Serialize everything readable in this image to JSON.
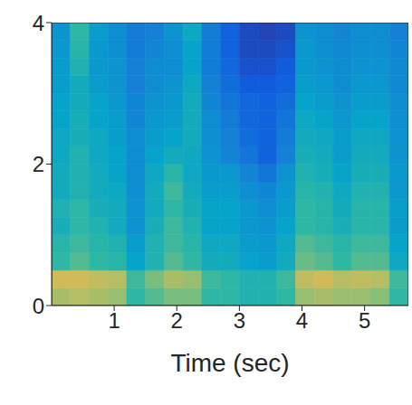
{
  "chart_data": {
    "type": "heatmap",
    "x_label": "Time (sec)",
    "xlim": [
      0,
      5.7
    ],
    "ylim": [
      0,
      4
    ],
    "xticks": [
      1,
      2,
      3,
      4,
      5
    ],
    "yticks": [
      0,
      2,
      4
    ],
    "color_range": [
      0,
      1
    ],
    "x_edges": [
      0,
      0.3,
      0.6,
      0.9,
      1.2,
      1.5,
      1.8,
      2.1,
      2.4,
      2.7,
      3.0,
      3.3,
      3.6,
      3.9,
      4.2,
      4.5,
      4.8,
      5.1,
      5.4,
      5.7
    ],
    "y_edges": [
      0,
      0.25,
      0.5,
      0.75,
      1.0,
      1.25,
      1.5,
      1.75,
      2.0,
      2.25,
      2.5,
      2.75,
      3.0,
      3.25,
      3.5,
      3.75,
      4.0
    ],
    "z": [
      [
        0.78,
        0.8,
        0.78,
        0.75,
        0.6,
        0.65,
        0.7,
        0.7,
        0.6,
        0.6,
        0.55,
        0.55,
        0.6,
        0.75,
        0.78,
        0.75,
        0.75,
        0.72,
        0.6
      ],
      [
        0.85,
        0.85,
        0.82,
        0.8,
        0.62,
        0.7,
        0.78,
        0.75,
        0.62,
        0.6,
        0.55,
        0.55,
        0.62,
        0.82,
        0.85,
        0.8,
        0.82,
        0.8,
        0.62
      ],
      [
        0.6,
        0.65,
        0.6,
        0.58,
        0.45,
        0.55,
        0.65,
        0.6,
        0.5,
        0.5,
        0.45,
        0.42,
        0.5,
        0.68,
        0.65,
        0.6,
        0.65,
        0.65,
        0.48
      ],
      [
        0.58,
        0.62,
        0.58,
        0.55,
        0.42,
        0.55,
        0.62,
        0.58,
        0.48,
        0.48,
        0.42,
        0.4,
        0.48,
        0.65,
        0.62,
        0.58,
        0.62,
        0.62,
        0.45
      ],
      [
        0.52,
        0.6,
        0.55,
        0.5,
        0.38,
        0.52,
        0.62,
        0.55,
        0.45,
        0.45,
        0.4,
        0.38,
        0.45,
        0.6,
        0.58,
        0.52,
        0.58,
        0.58,
        0.42
      ],
      [
        0.55,
        0.6,
        0.52,
        0.5,
        0.38,
        0.5,
        0.6,
        0.52,
        0.45,
        0.45,
        0.4,
        0.35,
        0.42,
        0.6,
        0.58,
        0.5,
        0.58,
        0.58,
        0.42
      ],
      [
        0.5,
        0.55,
        0.5,
        0.48,
        0.36,
        0.5,
        0.62,
        0.5,
        0.42,
        0.42,
        0.36,
        0.32,
        0.4,
        0.58,
        0.55,
        0.48,
        0.55,
        0.55,
        0.4
      ],
      [
        0.5,
        0.55,
        0.5,
        0.45,
        0.35,
        0.48,
        0.58,
        0.48,
        0.4,
        0.4,
        0.32,
        0.25,
        0.38,
        0.55,
        0.52,
        0.45,
        0.52,
        0.52,
        0.4
      ],
      [
        0.48,
        0.55,
        0.48,
        0.45,
        0.35,
        0.45,
        0.5,
        0.48,
        0.38,
        0.32,
        0.25,
        0.18,
        0.3,
        0.52,
        0.5,
        0.42,
        0.5,
        0.5,
        0.38
      ],
      [
        0.48,
        0.52,
        0.48,
        0.42,
        0.35,
        0.42,
        0.45,
        0.5,
        0.36,
        0.3,
        0.22,
        0.18,
        0.28,
        0.5,
        0.48,
        0.42,
        0.48,
        0.48,
        0.38
      ],
      [
        0.45,
        0.52,
        0.45,
        0.42,
        0.32,
        0.4,
        0.42,
        0.5,
        0.35,
        0.28,
        0.2,
        0.18,
        0.25,
        0.48,
        0.45,
        0.4,
        0.45,
        0.45,
        0.36
      ],
      [
        0.45,
        0.5,
        0.45,
        0.4,
        0.32,
        0.38,
        0.4,
        0.5,
        0.32,
        0.25,
        0.2,
        0.18,
        0.22,
        0.45,
        0.42,
        0.38,
        0.42,
        0.42,
        0.35
      ],
      [
        0.42,
        0.5,
        0.42,
        0.38,
        0.3,
        0.35,
        0.38,
        0.48,
        0.3,
        0.22,
        0.15,
        0.15,
        0.18,
        0.42,
        0.4,
        0.35,
        0.4,
        0.4,
        0.33
      ],
      [
        0.42,
        0.55,
        0.4,
        0.38,
        0.3,
        0.35,
        0.35,
        0.45,
        0.28,
        0.2,
        0.12,
        0.12,
        0.15,
        0.4,
        0.38,
        0.35,
        0.38,
        0.38,
        0.33
      ],
      [
        0.4,
        0.58,
        0.4,
        0.36,
        0.28,
        0.32,
        0.35,
        0.45,
        0.28,
        0.18,
        0.1,
        0.1,
        0.12,
        0.4,
        0.36,
        0.33,
        0.36,
        0.36,
        0.32
      ],
      [
        0.38,
        0.6,
        0.42,
        0.35,
        0.28,
        0.3,
        0.38,
        0.48,
        0.28,
        0.18,
        0.1,
        0.08,
        0.1,
        0.38,
        0.35,
        0.32,
        0.35,
        0.35,
        0.3
      ]
    ]
  }
}
